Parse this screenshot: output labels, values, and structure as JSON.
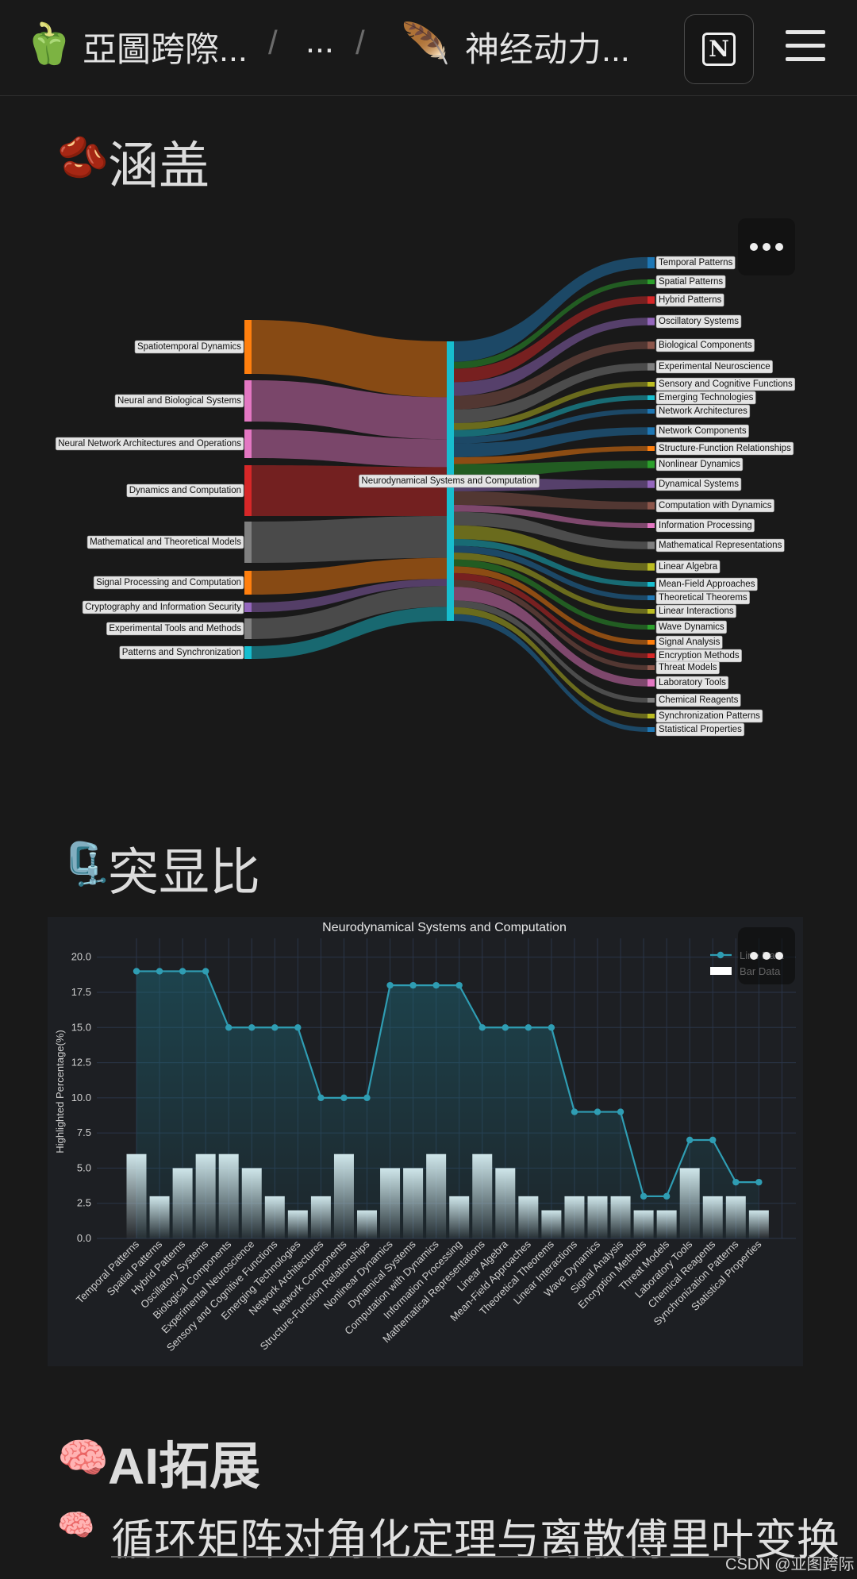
{
  "breadcrumb": {
    "workspace_emoji": "🫑",
    "workspace": "亞圖跨際...",
    "sep": "/",
    "ellipsis": "...",
    "page_emoji": "🪶",
    "page": "神经动力..."
  },
  "header": {
    "notion_letter": "N"
  },
  "sections": {
    "coverage": {
      "emoji": "🫘",
      "title": "涵盖"
    },
    "highlight": {
      "emoji": "🗜️",
      "title": "突显比"
    },
    "ai": {
      "emoji": "🧠",
      "title": "AI拓展"
    }
  },
  "ai_article": {
    "emoji": "🧠",
    "title": "循环矩阵对角化定理与离散傅里叶变换"
  },
  "watermark": "CSDN @亚图跨际",
  "chart_data": [
    {
      "type": "sankey",
      "center": "Neurodynamical Systems and Computation",
      "sources": [
        {
          "name": "Spatiotemporal Dynamics",
          "value": 8,
          "color": "#ff7f0e"
        },
        {
          "name": "Neural and Biological Systems",
          "value": 6,
          "color": "#e377c2"
        },
        {
          "name": "Neural Network Architectures and Operations",
          "value": 4,
          "color": "#e377c2"
        },
        {
          "name": "Dynamics and Computation",
          "value": 7,
          "color": "#d62728"
        },
        {
          "name": "Mathematical and Theoretical Models",
          "value": 6,
          "color": "#7f7f7f"
        },
        {
          "name": "Signal Processing and Computation",
          "value": 3,
          "color": "#ff7f0e"
        },
        {
          "name": "Cryptography and Information Security",
          "value": 1,
          "color": "#9467bd"
        },
        {
          "name": "Experimental Tools and Methods",
          "value": 3,
          "color": "#7f7f7f"
        },
        {
          "name": "Patterns and Synchronization",
          "value": 2,
          "color": "#17becf"
        }
      ],
      "targets": [
        {
          "name": "Temporal Patterns",
          "value": 3,
          "color": "#1f77b4"
        },
        {
          "name": "Spatial Patterns",
          "value": 1,
          "color": "#2ca02c"
        },
        {
          "name": "Hybrid Patterns",
          "value": 2,
          "color": "#d62728"
        },
        {
          "name": "Oscillatory Systems",
          "value": 2,
          "color": "#9467bd"
        },
        {
          "name": "Biological Components",
          "value": 2,
          "color": "#8c564b"
        },
        {
          "name": "Experimental Neuroscience",
          "value": 2,
          "color": "#7f7f7f"
        },
        {
          "name": "Sensory and Cognitive Functions",
          "value": 1,
          "color": "#bcbd22"
        },
        {
          "name": "Emerging Technologies",
          "value": 1,
          "color": "#17becf"
        },
        {
          "name": "Network Architectures",
          "value": 1,
          "color": "#1f77b4"
        },
        {
          "name": "Network Components",
          "value": 2,
          "color": "#1f77b4"
        },
        {
          "name": "Structure-Function Relationships",
          "value": 1,
          "color": "#ff7f0e"
        },
        {
          "name": "Nonlinear Dynamics",
          "value": 2,
          "color": "#2ca02c"
        },
        {
          "name": "Dynamical Systems",
          "value": 2,
          "color": "#9467bd"
        },
        {
          "name": "Computation with Dynamics",
          "value": 2,
          "color": "#8c564b"
        },
        {
          "name": "Information Processing",
          "value": 1,
          "color": "#e377c2"
        },
        {
          "name": "Mathematical Representations",
          "value": 2,
          "color": "#7f7f7f"
        },
        {
          "name": "Linear Algebra",
          "value": 2,
          "color": "#bcbd22"
        },
        {
          "name": "Mean-Field Approaches",
          "value": 1,
          "color": "#17becf"
        },
        {
          "name": "Theoretical Theorems",
          "value": 1,
          "color": "#1f77b4"
        },
        {
          "name": "Linear Interactions",
          "value": 1,
          "color": "#bcbd22"
        },
        {
          "name": "Wave Dynamics",
          "value": 1,
          "color": "#2ca02c"
        },
        {
          "name": "Signal Analysis",
          "value": 1,
          "color": "#ff7f0e"
        },
        {
          "name": "Encryption Methods",
          "value": 1,
          "color": "#d62728"
        },
        {
          "name": "Threat Models",
          "value": 1,
          "color": "#8c564b"
        },
        {
          "name": "Laboratory Tools",
          "value": 2,
          "color": "#e377c2"
        },
        {
          "name": "Chemical Reagents",
          "value": 1,
          "color": "#7f7f7f"
        },
        {
          "name": "Synchronization Patterns",
          "value": 1,
          "color": "#bcbd22"
        },
        {
          "name": "Statistical Properties",
          "value": 1,
          "color": "#1f77b4"
        }
      ]
    },
    {
      "type": "line+bar",
      "title": "Neurodynamical Systems and Computation",
      "ylabel": "Highlighted Percentage(%)",
      "ylim": [
        0,
        21
      ],
      "yticks": [
        "0.0",
        "2.5",
        "5.0",
        "7.5",
        "10.0",
        "12.5",
        "15.0",
        "17.5",
        "20.0"
      ],
      "legend": [
        "Line Data",
        "Bar Data"
      ],
      "categories": [
        "Temporal Patterns",
        "Spatial Patterns",
        "Hybrid Patterns",
        "Oscillatory Systems",
        "Biological Components",
        "Experimental Neuroscience",
        "Sensory and Cognitive Functions",
        "Emerging Technologies",
        "Network Architectures",
        "Network Components",
        "Structure-Function Relationships",
        "Nonlinear Dynamics",
        "Dynamical Systems",
        "Computation with Dynamics",
        "Information Processing",
        "Mathematical Representations",
        "Linear Algebra",
        "Mean-Field Approaches",
        "Theoretical Theorems",
        "Linear Interactions",
        "Wave Dynamics",
        "Signal Analysis",
        "Encryption Methods",
        "Threat Models",
        "Laboratory Tools",
        "Chemical Reagents",
        "Synchronization Patterns",
        "Statistical Properties"
      ],
      "line": [
        19,
        19,
        19,
        19,
        15,
        15,
        15,
        15,
        10,
        10,
        10,
        18,
        18,
        18,
        18,
        15,
        15,
        15,
        15,
        9,
        9,
        9,
        3,
        3,
        7,
        7,
        4,
        4
      ],
      "bars": [
        6,
        3,
        5,
        6,
        6,
        5,
        3,
        2,
        3,
        6,
        2,
        5,
        5,
        6,
        3,
        6,
        5,
        3,
        2,
        3,
        3,
        3,
        2,
        2,
        5,
        3,
        3,
        2
      ]
    }
  ]
}
